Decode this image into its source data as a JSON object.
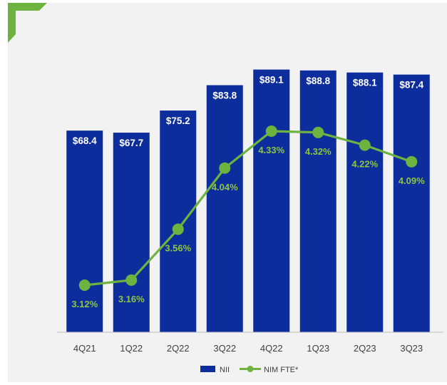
{
  "chart_data": {
    "type": "bar",
    "categories": [
      "4Q21",
      "1Q22",
      "2Q22",
      "3Q22",
      "4Q22",
      "1Q23",
      "2Q23",
      "3Q23"
    ],
    "series": [
      {
        "name": "NII",
        "type": "bar",
        "values": [
          68.4,
          67.7,
          75.2,
          83.8,
          89.1,
          88.8,
          88.1,
          87.4
        ],
        "labels": [
          "$68.4",
          "$67.7",
          "$75.2",
          "$83.8",
          "$89.1",
          "$88.8",
          "$88.1",
          "$87.4"
        ],
        "color": "#0d2d9c"
      },
      {
        "name": "NIM FTE*",
        "type": "line",
        "values": [
          3.12,
          3.16,
          3.56,
          4.04,
          4.33,
          4.32,
          4.22,
          4.09
        ],
        "labels": [
          "3.12%",
          "3.16%",
          "3.56%",
          "4.04%",
          "4.33%",
          "4.32%",
          "4.22%",
          "4.09%"
        ],
        "color": "#6db33f"
      }
    ],
    "ylim_bars": [
      0,
      100
    ],
    "ylim_line": [
      2.5,
      4.5
    ],
    "grid": false,
    "legend_position": "bottom"
  },
  "colors": {
    "panel_background": "#f2f2f2",
    "corner_accent": "#6db33f",
    "axis": "#bfbfbf"
  }
}
